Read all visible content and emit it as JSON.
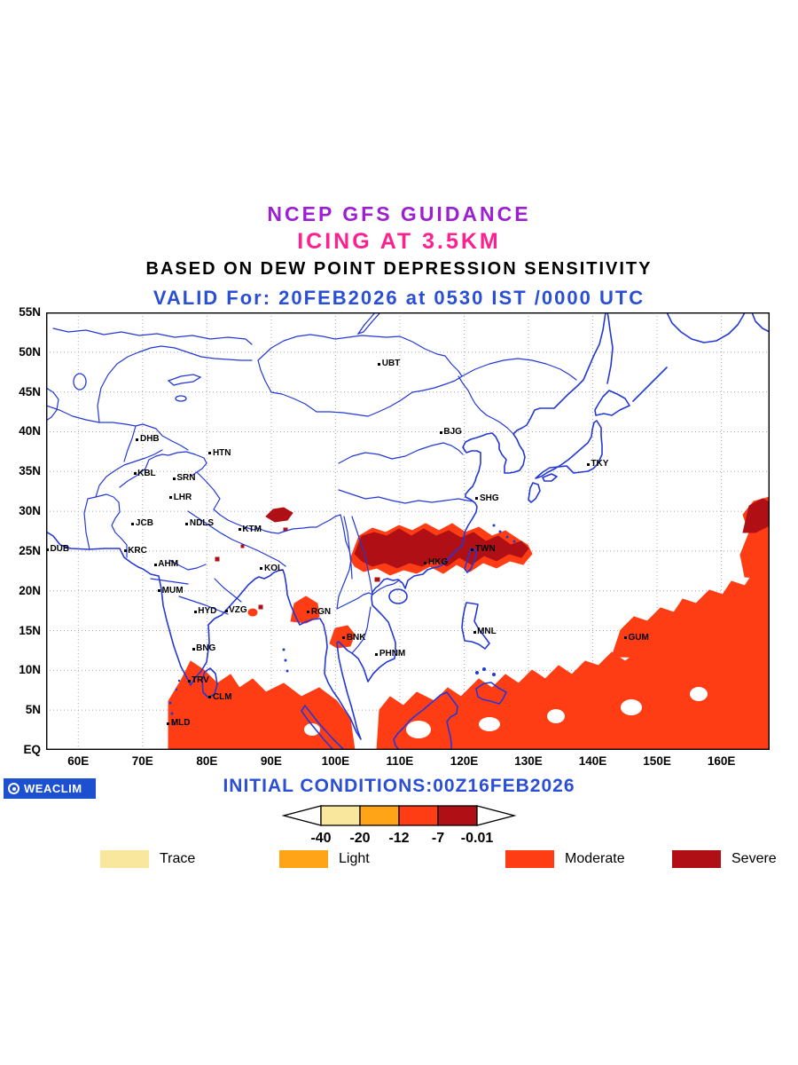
{
  "titles": {
    "guidance": "NCEP GFS GUIDANCE",
    "product": "ICING AT 3.5KM",
    "basis": "BASED ON DEW POINT DEPRESSION SENSITIVITY",
    "valid": "VALID For: 20FEB2026 at 0530 IST /0000 UTC"
  },
  "colors": {
    "guidance": "#9c1fd1",
    "product": "#ff2090",
    "valid": "#2a4fd4",
    "map_lines": "#2338d6",
    "grid": "#aaaaaa",
    "trace": "#f8e79c",
    "light": "#ffa317",
    "moderate": "#ff3d14",
    "severe": "#b01015",
    "logo_bg": "#1d4fd1"
  },
  "axes": {
    "lat_labels": [
      "55N",
      "50N",
      "45N",
      "40N",
      "35N",
      "30N",
      "25N",
      "20N",
      "15N",
      "10N",
      "5N",
      "EQ"
    ],
    "lon_labels": [
      "60E",
      "70E",
      "80E",
      "90E",
      "100E",
      "110E",
      "120E",
      "130E",
      "140E",
      "150E",
      "160E"
    ]
  },
  "stations": [
    {
      "code": "UBT",
      "lon": 106.8,
      "lat": 48.5
    },
    {
      "code": "BJG",
      "lon": 116.4,
      "lat": 39.9
    },
    {
      "code": "TKY",
      "lon": 139.3,
      "lat": 35.9
    },
    {
      "code": "SHG",
      "lon": 122.0,
      "lat": 31.6
    },
    {
      "code": "TWN",
      "lon": 121.3,
      "lat": 25.2
    },
    {
      "code": "HKG",
      "lon": 114.0,
      "lat": 23.5
    },
    {
      "code": "DHB",
      "lon": 69.2,
      "lat": 39.0
    },
    {
      "code": "HTN",
      "lon": 80.5,
      "lat": 37.3
    },
    {
      "code": "KBL",
      "lon": 68.8,
      "lat": 34.7
    },
    {
      "code": "SRN",
      "lon": 74.9,
      "lat": 34.1
    },
    {
      "code": "LHR",
      "lon": 74.4,
      "lat": 31.7
    },
    {
      "code": "JCB",
      "lon": 68.5,
      "lat": 28.4
    },
    {
      "code": "NDLS",
      "lon": 76.9,
      "lat": 28.4
    },
    {
      "code": "KTM",
      "lon": 85.1,
      "lat": 27.7
    },
    {
      "code": "DUB",
      "lon": 55.2,
      "lat": 25.2
    },
    {
      "code": "KRC",
      "lon": 67.3,
      "lat": 25.0
    },
    {
      "code": "AHM",
      "lon": 72.0,
      "lat": 23.3
    },
    {
      "code": "KOL",
      "lon": 88.5,
      "lat": 22.8
    },
    {
      "code": "MUM",
      "lon": 72.6,
      "lat": 20.0
    },
    {
      "code": "HYD",
      "lon": 78.2,
      "lat": 17.4
    },
    {
      "code": "VZG",
      "lon": 83.0,
      "lat": 17.5
    },
    {
      "code": "RGN",
      "lon": 95.8,
      "lat": 17.3
    },
    {
      "code": "BNK",
      "lon": 101.3,
      "lat": 14.1
    },
    {
      "code": "PHNM",
      "lon": 106.4,
      "lat": 12.0
    },
    {
      "code": "MNL",
      "lon": 121.6,
      "lat": 14.8
    },
    {
      "code": "GUM",
      "lon": 145.1,
      "lat": 14.1
    },
    {
      "code": "BNG",
      "lon": 77.9,
      "lat": 12.7
    },
    {
      "code": "TRV",
      "lon": 77.2,
      "lat": 8.7
    },
    {
      "code": "CLM",
      "lon": 80.5,
      "lat": 6.6
    },
    {
      "code": "MLD",
      "lon": 74.0,
      "lat": 3.3
    }
  ],
  "colorbar": {
    "tick_labels": [
      "-40",
      "-20",
      "-12",
      "-7",
      "-0.01"
    ],
    "segments": [
      "trace",
      "light",
      "moderate",
      "severe"
    ]
  },
  "legend": [
    {
      "label": "Trace",
      "key": "trace"
    },
    {
      "label": "Light",
      "key": "light"
    },
    {
      "label": "Moderate",
      "key": "moderate"
    },
    {
      "label": "Severe",
      "key": "severe"
    }
  ],
  "footer": {
    "initial": "INITIAL CONDITIONS:00Z16FEB2026",
    "logo": "WEACLIM"
  }
}
